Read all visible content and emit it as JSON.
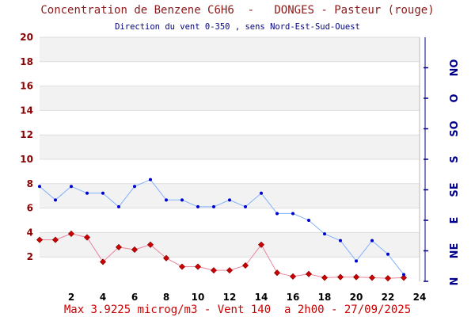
{
  "header": {
    "title": "Concentration de Benzene C6H6  -   DONGES - Pasteur (rouge)",
    "subtitle": "Direction du vent 0-350 , sens Nord-Est-Sud-Ouest"
  },
  "footer": {
    "text": "Max 3.9225 microg/m3 - Vent 140  a 2h00 - 27/09/2025"
  },
  "colors": {
    "benzene_line": "#e8839a",
    "benzene_marker": "#cc0000",
    "wind_line": "#80b0ff",
    "wind_marker": "#0000cc",
    "band": "#f2f2f2",
    "grid": "#dddddd"
  },
  "chart_data": {
    "type": "line",
    "xlim": [
      0,
      24
    ],
    "ylim": [
      0,
      20
    ],
    "x_ticks": [
      "2",
      "4",
      "6",
      "8",
      "10",
      "12",
      "14",
      "16",
      "18",
      "20",
      "22",
      "24"
    ],
    "y_ticks": [
      "2",
      "4",
      "6",
      "8",
      "10",
      "12",
      "14",
      "16",
      "18",
      "20"
    ],
    "right_axis": {
      "range": [
        0,
        360
      ],
      "labels": [
        "N",
        "NE",
        "E",
        "SE",
        "S",
        "SO",
        "O",
        "NO"
      ]
    },
    "grid": true,
    "series": [
      {
        "name": "Benzene",
        "axis": "left",
        "x": [
          0,
          1,
          2,
          3,
          4,
          5,
          6,
          7,
          8,
          9,
          10,
          11,
          12,
          13,
          14,
          15,
          16,
          17,
          18,
          19,
          20,
          21,
          22,
          23
        ],
        "values": [
          3.4,
          3.4,
          3.9,
          3.6,
          1.6,
          2.8,
          2.6,
          3.0,
          1.9,
          1.2,
          1.2,
          0.9,
          0.9,
          1.3,
          3.0,
          0.7,
          0.4,
          0.6,
          0.3,
          0.35,
          0.35,
          0.3,
          0.25,
          0.3
        ]
      },
      {
        "name": "Vent",
        "axis": "right",
        "x": [
          0,
          1,
          2,
          3,
          4,
          5,
          6,
          7,
          8,
          9,
          10,
          11,
          12,
          13,
          14,
          15,
          16,
          17,
          18,
          19,
          20,
          21,
          22,
          23
        ],
        "values": [
          140,
          120,
          140,
          130,
          130,
          110,
          140,
          150,
          120,
          120,
          110,
          110,
          120,
          110,
          130,
          100,
          100,
          90,
          70,
          60,
          30,
          60,
          40,
          10
        ]
      }
    ]
  }
}
